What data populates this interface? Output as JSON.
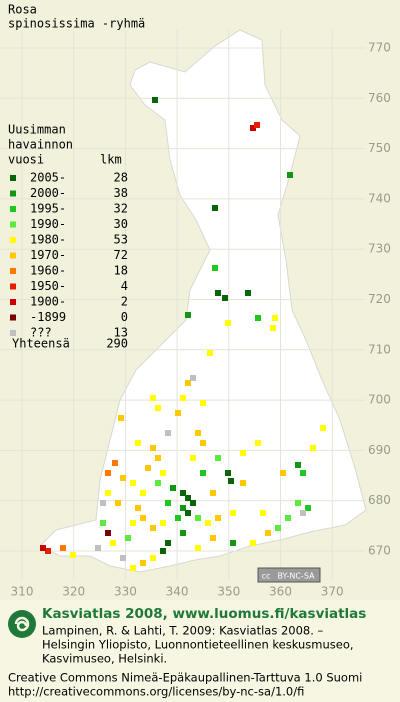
{
  "title": [
    "Rosa",
    "spinosissima -ryhmä"
  ],
  "legend": {
    "heading": [
      "Uusimman",
      "havainnon"
    ],
    "col_year": "vuosi",
    "col_count": "lkm",
    "rows": [
      {
        "label": "2005-",
        "count": 28,
        "color": "#0a640a"
      },
      {
        "label": "2000-",
        "count": 38,
        "color": "#149614"
      },
      {
        "label": "1995-",
        "count": 32,
        "color": "#1ec81e"
      },
      {
        "label": "1990-",
        "count": 30,
        "color": "#5aeb3c"
      },
      {
        "label": "1980-",
        "count": 53,
        "color": "#ffff00"
      },
      {
        "label": "1970-",
        "count": 72,
        "color": "#ffc800"
      },
      {
        "label": "1960-",
        "count": 18,
        "color": "#ff7800"
      },
      {
        "label": "1950-",
        "count": 4,
        "color": "#e61e00"
      },
      {
        "label": "1900-",
        "count": 2,
        "color": "#c80000"
      },
      {
        "label": "-1899",
        "count": 0,
        "color": "#780000"
      },
      {
        "label": "???",
        "count": 13,
        "color": "#c0c0c0"
      }
    ],
    "total_label": "Yhteensä",
    "total": 290
  },
  "grid": {
    "y_labels": [
      "770",
      "760",
      "750",
      "740",
      "730",
      "720",
      "710",
      "700",
      "690",
      "680",
      "670"
    ],
    "x_labels": [
      "310",
      "320",
      "330",
      "340",
      "350",
      "360",
      "370"
    ]
  },
  "badge": {
    "icon": "cc",
    "text": "BY-NC-SA"
  },
  "footer": {
    "site": "Kasviatlas 2008, www.luomus.fi/kasviatlas",
    "citation": [
      "Lampinen, R. & Lahti, T. 2009: Kasviatlas 2008. –",
      "Helsingin Yliopisto, Luonnontieteellinen keskusmuseo,",
      "Kasvimuseo, Helsinki."
    ],
    "license": [
      "Creative Commons Nimeä-Epäkaupallinen-Tarttuva 1.0 Suomi",
      "http://creativecommons.org/licenses/by-nc-sa/1.0/fi"
    ]
  }
}
